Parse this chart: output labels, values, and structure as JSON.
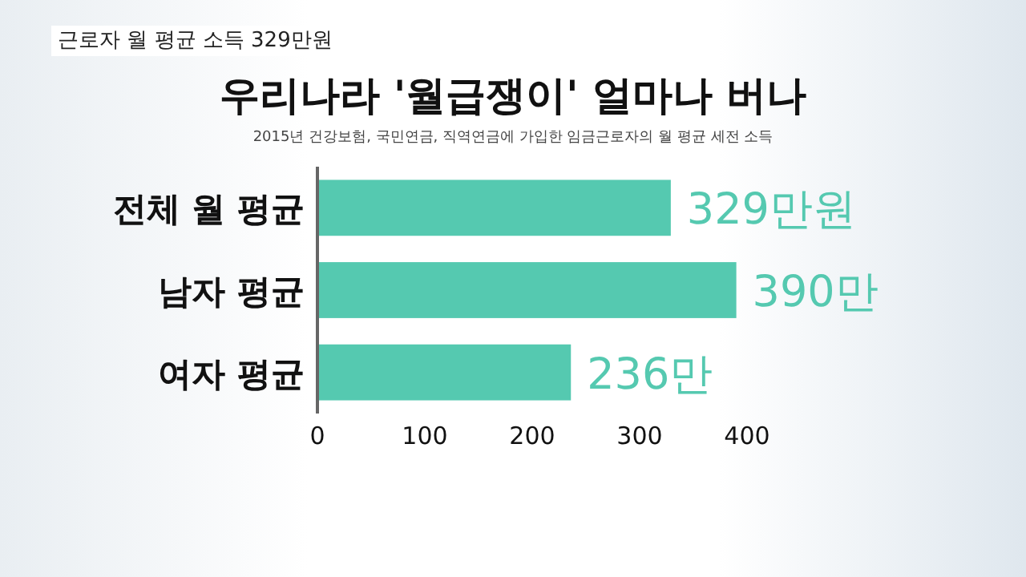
{
  "chart_data": {
    "type": "bar",
    "orientation": "horizontal",
    "title": "우리나라 '월급쟁이' 얼마나 버나",
    "subtitle": "2015년 건강보험, 국민연금, 직역연금에 가입한 임금근로자의 월 평균 세전 소득",
    "annotations": [
      "근로자 월 평균 소득 329만원"
    ],
    "categories": [
      "전체 월 평균",
      "남자 평균",
      "여자 평균"
    ],
    "values": [
      329,
      390,
      236
    ],
    "value_labels": [
      "329만원",
      "390만",
      "236만"
    ],
    "color": "#55c9b0",
    "xlim": [
      0,
      400
    ],
    "xticks": [
      0,
      100,
      200,
      300,
      400
    ],
    "grid": false
  }
}
